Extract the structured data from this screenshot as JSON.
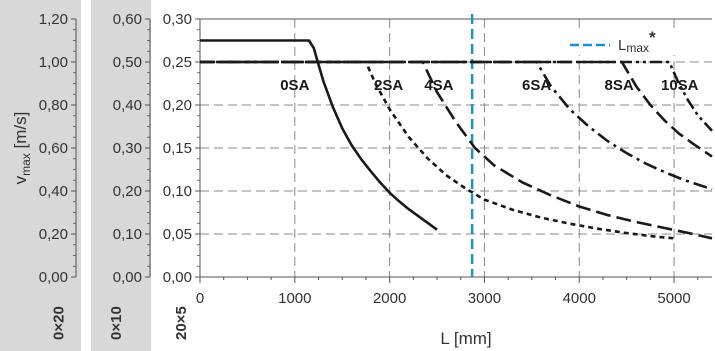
{
  "chart_data": {
    "type": "line",
    "xlabel": "L [mm]",
    "ylabel": "v",
    "ylabel_sub": "max",
    "ylabel_unit": " [m/s]",
    "xlim": [
      0,
      5400
    ],
    "ylim": [
      0,
      0.3
    ],
    "x_ticks": [
      "0",
      "1000",
      "2000",
      "3000",
      "4000",
      "5000"
    ],
    "x_tick_values": [
      0,
      1000,
      2000,
      3000,
      4000,
      5000
    ],
    "grid": true,
    "legend_position": "top-right",
    "y_axes": [
      {
        "ticks": [
          "0,00",
          "0,20",
          "0,40",
          "0,60",
          "0,80",
          "1,00",
          "1,20"
        ],
        "label": "0×20",
        "shaded": true
      },
      {
        "ticks": [
          "0,00",
          "0,10",
          "0,20",
          "0,30",
          "0,40",
          "0,50",
          "0,60"
        ],
        "label": "0×10",
        "shaded": true
      },
      {
        "ticks": [
          "0,00",
          "0,05",
          "0,10",
          "0,15",
          "0,20",
          "0,25",
          "0,30"
        ],
        "label": "20×5",
        "shaded": false
      }
    ],
    "y_tick_values": [
      0,
      0.05,
      0.1,
      0.15,
      0.2,
      0.25,
      0.3
    ],
    "reference_line": {
      "label": "L",
      "label_sub": "max",
      "label_sup": "*",
      "x": 2870,
      "color": "#1f8fd0",
      "style": "dashed"
    },
    "series": [
      {
        "name": "0SA",
        "style": "solid",
        "x": [
          0,
          1150,
          1200,
          1250,
          1300,
          1400,
          1500,
          1600,
          1700,
          1800,
          1900,
          2000,
          2100,
          2200,
          2300,
          2400,
          2500
        ],
        "y": [
          0.275,
          0.275,
          0.266,
          0.247,
          0.228,
          0.198,
          0.173,
          0.153,
          0.137,
          0.123,
          0.11,
          0.098,
          0.088,
          0.079,
          0.071,
          0.063,
          0.055
        ]
      },
      {
        "name": "2SA",
        "style": "short-dash",
        "x": [
          0,
          1750,
          1850,
          2000,
          2200,
          2400,
          2600,
          2800,
          3000,
          3300,
          3600,
          3900,
          4200,
          4500,
          4800,
          5000
        ],
        "y": [
          0.25,
          0.25,
          0.225,
          0.195,
          0.163,
          0.138,
          0.118,
          0.103,
          0.09,
          0.078,
          0.069,
          0.062,
          0.056,
          0.051,
          0.047,
          0.045
        ]
      },
      {
        "name": "4SA",
        "style": "long-dash",
        "x": [
          0,
          2350,
          2500,
          2700,
          2900,
          3100,
          3400,
          3700,
          4000,
          4300,
          4600,
          4900,
          5200,
          5400
        ],
        "y": [
          0.25,
          0.25,
          0.215,
          0.18,
          0.15,
          0.13,
          0.11,
          0.095,
          0.082,
          0.072,
          0.064,
          0.057,
          0.05,
          0.045
        ]
      },
      {
        "name": "6SA",
        "style": "dash-dot",
        "x": [
          0,
          3550,
          3700,
          3900,
          4100,
          4300,
          4500,
          4700,
          4900,
          5100,
          5400
        ],
        "y": [
          0.25,
          0.25,
          0.222,
          0.195,
          0.175,
          0.158,
          0.144,
          0.132,
          0.122,
          0.113,
          0.102
        ]
      },
      {
        "name": "8SA",
        "style": "long-dash",
        "x": [
          0,
          4450,
          4600,
          4750,
          4900,
          5050,
          5200,
          5400
        ],
        "y": [
          0.25,
          0.25,
          0.222,
          0.2,
          0.182,
          0.167,
          0.155,
          0.14
        ]
      },
      {
        "name": "10SA",
        "style": "dash-dot-dot",
        "x": [
          0,
          4950,
          5050,
          5150,
          5250,
          5400
        ],
        "y": [
          0.25,
          0.25,
          0.225,
          0.205,
          0.188,
          0.17
        ]
      }
    ],
    "series_labels": [
      {
        "text": "0SA",
        "x": 1000
      },
      {
        "text": "2SA",
        "x": 1990
      },
      {
        "text": "4SA",
        "x": 2520
      },
      {
        "text": "6SA",
        "x": 3550
      },
      {
        "text": "8SA",
        "x": 4420
      },
      {
        "text": "10SA",
        "x": 5060
      }
    ],
    "colors": {
      "line": "#1a1a1a",
      "grid": "#8a8a8a",
      "panel": "#d8d8d8",
      "axis": "#555555"
    }
  }
}
